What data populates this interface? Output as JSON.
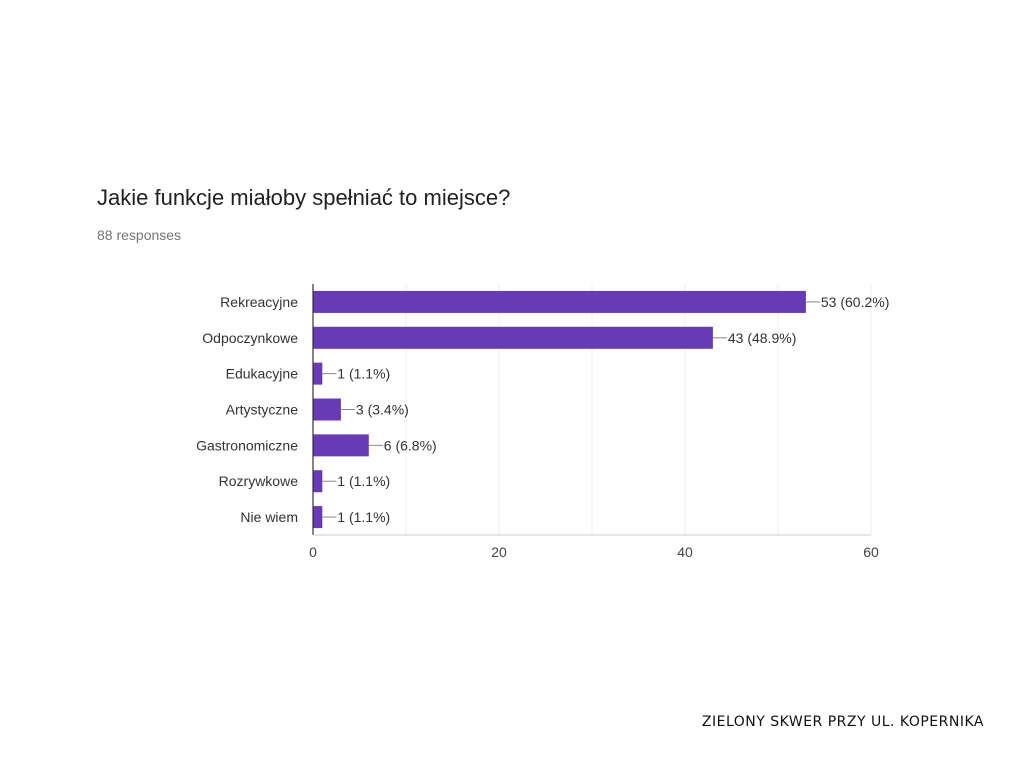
{
  "header": {
    "question": "Jakie funkcje miałoby spełniać to miejsce?",
    "responses": "88 responses"
  },
  "footer": {
    "text": "ZIELONY SKWER PRZY UL. KOPERNIKA"
  },
  "chart_data": {
    "type": "bar",
    "orientation": "horizontal",
    "categories": [
      "Rekreacyjne",
      "Odpoczynkowe",
      "Edukacyjne",
      "Artystyczne",
      "Gastronomiczne",
      "Rozrywkowe",
      "Nie wiem"
    ],
    "values": [
      53,
      43,
      1,
      3,
      6,
      1,
      1
    ],
    "data_labels": [
      "53 (60.2%)",
      "43 (48.9%)",
      "1 (1.1%)",
      "3 (3.4%)",
      "6 (6.8%)",
      "1 (1.1%)",
      "1 (1.1%)"
    ],
    "xlim": [
      0,
      60
    ],
    "xticks": [
      0,
      20,
      40,
      60
    ],
    "grid": true,
    "bar_color": "#673ab7",
    "title": "",
    "xlabel": "",
    "ylabel": ""
  }
}
